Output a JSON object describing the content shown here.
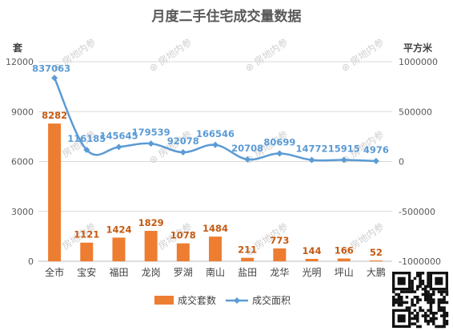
{
  "chart_data": {
    "type": "bar+line",
    "title": "月度二手住宅成交量数据",
    "left_axis_unit": "套",
    "right_axis_unit": "平方米",
    "categories": [
      "全市",
      "宝安",
      "福田",
      "龙岗",
      "罗湖",
      "南山",
      "盐田",
      "龙华",
      "光明",
      "坪山",
      "大鹏"
    ],
    "left_ticks": [
      "0",
      "3000",
      "6000",
      "9000",
      "12000"
    ],
    "right_ticks": [
      "-1000000",
      "-500000",
      "0",
      "500000",
      "1000000"
    ],
    "ylim_left": [
      0,
      12000
    ],
    "ylim_right": [
      -1000000,
      1000000
    ],
    "series": [
      {
        "name": "成交套数",
        "type": "bar",
        "axis": "left",
        "color": "#ed7d31",
        "values": [
          8282,
          1121,
          1424,
          1829,
          1078,
          1484,
          211,
          773,
          144,
          166,
          52
        ]
      },
      {
        "name": "成交面积",
        "type": "line",
        "axis": "right",
        "color": "#5b9bd5",
        "values": [
          837063,
          116185,
          145645,
          179539,
          92078,
          166546,
          20708,
          80699,
          14772,
          15915,
          4976
        ]
      }
    ],
    "watermark": "房地内参"
  }
}
